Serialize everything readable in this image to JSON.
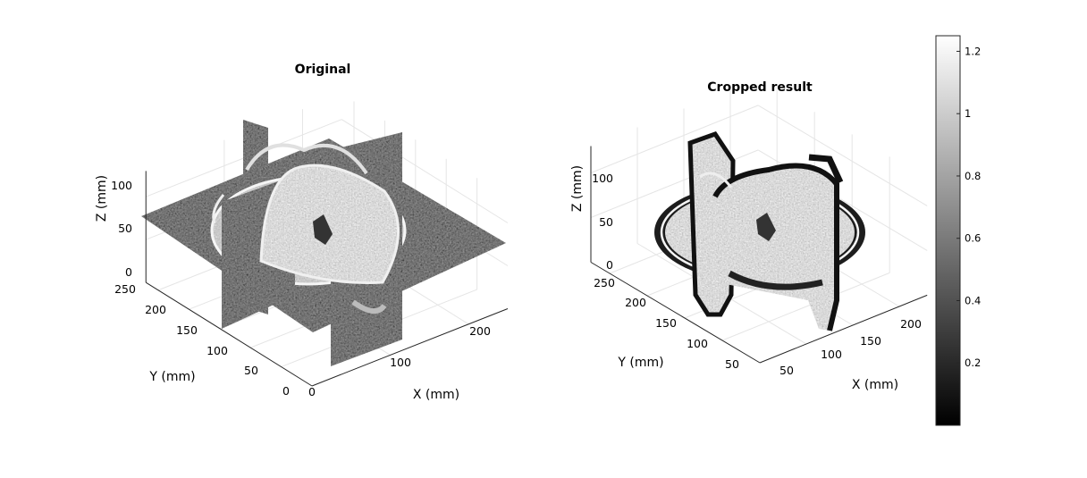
{
  "chart_data": [
    {
      "type": "volume-slices-3d",
      "title": "Original",
      "xlabel": "X (mm)",
      "ylabel": "Y (mm)",
      "zlabel": "Z (mm)",
      "x_ticks": [
        "0",
        "100",
        "200"
      ],
      "y_ticks": [
        "0",
        "50",
        "100",
        "150",
        "200",
        "250"
      ],
      "z_ticks": [
        "0",
        "50",
        "100"
      ],
      "xlim": [
        0,
        250
      ],
      "ylim": [
        0,
        270
      ],
      "zlim": [
        0,
        130
      ],
      "grid": true,
      "colormap": "gray"
    },
    {
      "type": "volume-slices-3d",
      "title": "Cropped result",
      "xlabel": "X (mm)",
      "ylabel": "Y (mm)",
      "zlabel": "Z (mm)",
      "x_ticks": [
        "50",
        "100",
        "150",
        "200"
      ],
      "y_ticks": [
        "50",
        "100",
        "150",
        "200",
        "250"
      ],
      "z_ticks": [
        "0",
        "50",
        "100"
      ],
      "xlim": [
        30,
        215
      ],
      "ylim": [
        40,
        265
      ],
      "zlim": [
        0,
        130
      ],
      "grid": true,
      "colormap": "gray"
    }
  ],
  "colorbar": {
    "ticks": [
      "0.2",
      "0.4",
      "0.6",
      "0.8",
      "1",
      "1.2"
    ],
    "tick_values": [
      0.2,
      0.4,
      0.6,
      0.8,
      1.0,
      1.2
    ],
    "range": [
      0,
      1.25
    ],
    "colormap": "gray"
  }
}
